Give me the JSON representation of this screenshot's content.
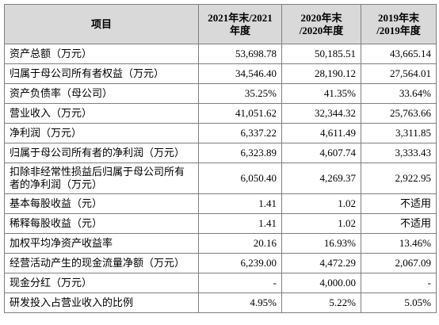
{
  "table": {
    "headers": [
      [
        "项目"
      ],
      [
        "2021年末/2021",
        "年度"
      ],
      [
        "2020年末",
        "/2020年度"
      ],
      [
        "2019年末",
        "/2019年度"
      ]
    ],
    "rows": [
      [
        "资产总额（万元）",
        "53,698.78",
        "50,185.51",
        "43,665.14"
      ],
      [
        "归属于母公司所有者权益（万元）",
        "34,546.40",
        "28,190.12",
        "27,564.01"
      ],
      [
        "资产负债率（母公司）",
        "35.25%",
        "41.35%",
        "33.64%"
      ],
      [
        "营业收入（万元）",
        "41,051.62",
        "32,344.32",
        "25,763.66"
      ],
      [
        "净利润（万元）",
        "6,337.22",
        "4,611.49",
        "3,311.85"
      ],
      [
        "归属于母公司所有者的净利润（万元）",
        "6,323.89",
        "4,607.74",
        "3,333.43"
      ],
      [
        "扣除非经常性损益后归属于母公司所有者的净利润（万元）",
        "6,050.40",
        "4,269.37",
        "2,922.95"
      ],
      [
        "基本每股收益（元）",
        "1.41",
        "1.02",
        "不适用"
      ],
      [
        "稀释每股收益（元）",
        "1.41",
        "1.02",
        "不适用"
      ],
      [
        "加权平均净资产收益率",
        "20.16",
        "16.93%",
        "13.46%"
      ],
      [
        "经营活动产生的现金流量净额（万元）",
        "6,239.00",
        "4,472.29",
        "2,067.09"
      ],
      [
        "现金分红（万元）",
        "-",
        "4,000.00",
        "-"
      ],
      [
        "研发投入占营业收入的比例",
        "4.95%",
        "5.22%",
        "5.05%"
      ]
    ]
  }
}
